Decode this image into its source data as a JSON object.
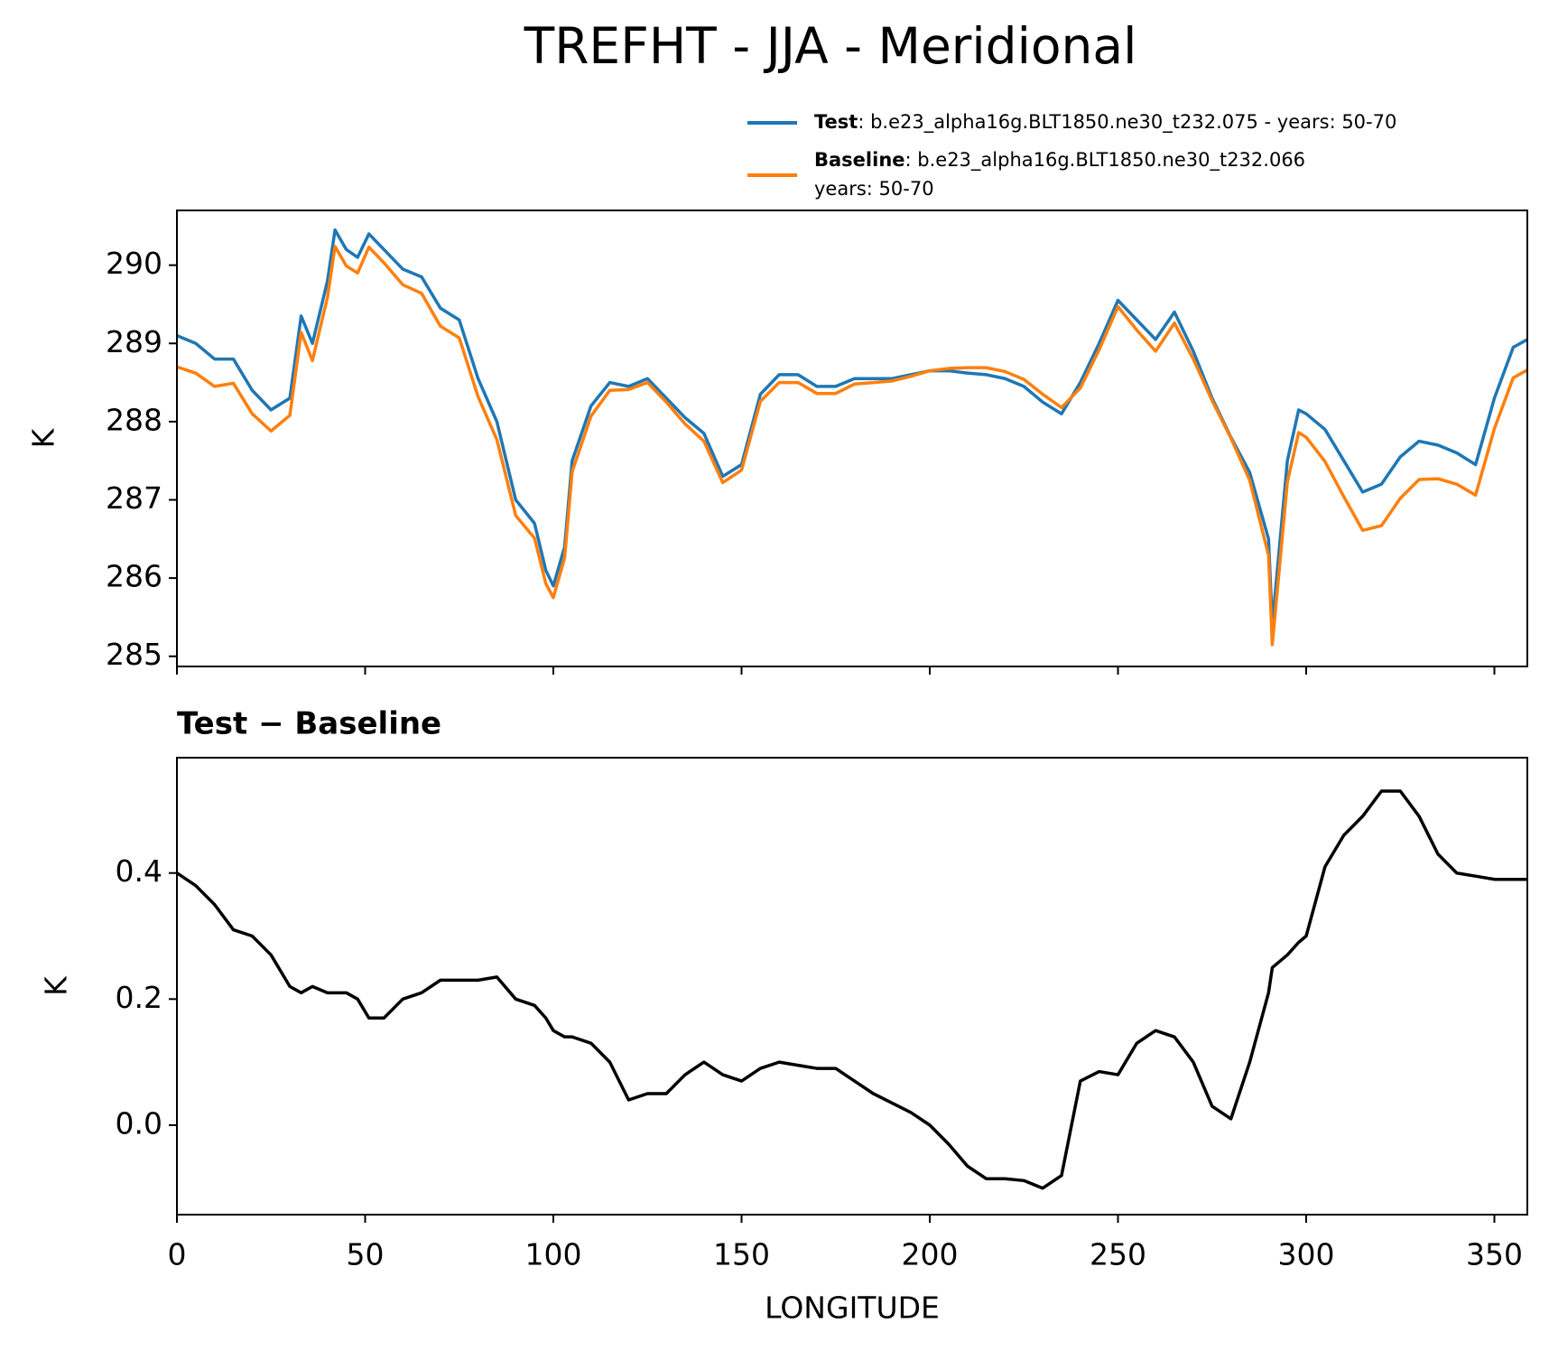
{
  "chart_data": [
    {
      "type": "line",
      "title": "TREFHT - JJA - Meridional",
      "ylabel": "K",
      "xlim": [
        0,
        358.75
      ],
      "ylim": [
        284.87,
        290.7
      ],
      "xticks": [
        0,
        50,
        100,
        150,
        200,
        250,
        300,
        350
      ],
      "show_xtick_labels": false,
      "yticks": [
        285,
        286,
        287,
        288,
        289,
        290
      ],
      "legend": "upper right outside",
      "x": [
        0,
        5,
        10,
        15,
        20,
        25,
        30,
        33,
        36,
        40,
        42,
        45,
        48,
        51,
        55,
        60,
        65,
        70,
        75,
        80,
        85,
        90,
        95,
        98,
        100,
        103,
        105,
        110,
        115,
        120,
        125,
        130,
        135,
        140,
        145,
        150,
        155,
        160,
        165,
        170,
        175,
        180,
        185,
        190,
        195,
        200,
        205,
        210,
        215,
        220,
        225,
        230,
        235,
        240,
        245,
        250,
        255,
        260,
        265,
        270,
        275,
        280,
        285,
        290,
        291,
        295,
        298,
        300,
        305,
        310,
        315,
        320,
        325,
        330,
        335,
        340,
        345,
        350,
        355,
        358.75
      ],
      "series": [
        {
          "name": "Test",
          "description": [
            ": b.e23_alpha16g.BLT1850.ne30_t232.075 - years: 50-70"
          ],
          "color": "#1f77b4",
          "values": [
            289.1,
            289.0,
            288.8,
            288.8,
            288.4,
            288.15,
            288.3,
            289.35,
            289.0,
            289.8,
            290.45,
            290.2,
            290.1,
            290.4,
            290.2,
            289.95,
            289.85,
            289.45,
            289.3,
            288.55,
            288.0,
            287.0,
            286.7,
            286.1,
            285.9,
            286.4,
            287.5,
            288.2,
            288.5,
            288.45,
            288.55,
            288.3,
            288.05,
            287.85,
            287.3,
            287.45,
            288.35,
            288.6,
            288.6,
            288.45,
            288.45,
            288.55,
            288.55,
            288.55,
            288.6,
            288.65,
            288.65,
            288.62,
            288.6,
            288.55,
            288.45,
            288.25,
            288.1,
            288.5,
            289.0,
            289.55,
            289.3,
            289.05,
            289.4,
            288.9,
            288.3,
            287.8,
            287.35,
            286.5,
            285.4,
            287.5,
            288.15,
            288.1,
            287.9,
            287.5,
            287.1,
            287.2,
            287.55,
            287.75,
            287.7,
            287.6,
            287.45,
            288.3,
            288.95,
            289.05
          ]
        },
        {
          "name": "Baseline",
          "description": [
            ": b.e23_alpha16g.BLT1850.ne30_t232.066",
            "years: 50-70"
          ],
          "color": "#ff7f0e",
          "values": [
            288.7,
            288.62,
            288.45,
            288.49,
            288.1,
            287.88,
            288.08,
            289.14,
            288.78,
            289.59,
            290.24,
            289.99,
            289.9,
            290.23,
            290.03,
            289.75,
            289.64,
            289.22,
            289.07,
            288.32,
            287.77,
            286.8,
            286.51,
            285.93,
            285.75,
            286.26,
            287.36,
            288.07,
            288.4,
            288.41,
            288.5,
            288.25,
            287.97,
            287.75,
            287.22,
            287.38,
            288.26,
            288.5,
            288.5,
            288.36,
            288.36,
            288.48,
            288.5,
            288.52,
            288.58,
            288.65,
            288.68,
            288.69,
            288.69,
            288.64,
            288.54,
            288.35,
            288.18,
            288.43,
            288.92,
            289.47,
            289.17,
            288.9,
            289.26,
            288.8,
            288.27,
            287.79,
            287.25,
            286.29,
            285.15,
            287.23,
            287.86,
            287.8,
            287.49,
            287.04,
            286.61,
            286.67,
            287.02,
            287.26,
            287.27,
            287.2,
            287.06,
            287.91,
            288.56,
            288.66
          ]
        }
      ]
    },
    {
      "type": "line",
      "title": "Test − Baseline",
      "xlabel": "LONGITUDE",
      "ylabel": "K",
      "xlim": [
        0,
        358.75
      ],
      "ylim": [
        -0.142,
        0.583
      ],
      "xticks": [
        0,
        50,
        100,
        150,
        200,
        250,
        300,
        350
      ],
      "show_xtick_labels": true,
      "yticks": [
        {
          "value": 0,
          "label": "0.0"
        },
        0.2,
        0.4
      ],
      "color": "#000000",
      "x": [
        0,
        5,
        10,
        15,
        20,
        25,
        30,
        33,
        36,
        40,
        42,
        45,
        48,
        51,
        55,
        60,
        65,
        70,
        75,
        80,
        85,
        90,
        95,
        98,
        100,
        103,
        105,
        110,
        115,
        120,
        125,
        130,
        135,
        140,
        145,
        150,
        155,
        160,
        165,
        170,
        175,
        180,
        185,
        190,
        195,
        200,
        205,
        210,
        215,
        220,
        225,
        230,
        235,
        240,
        245,
        250,
        255,
        260,
        265,
        270,
        275,
        280,
        285,
        290,
        291,
        295,
        298,
        300,
        305,
        310,
        315,
        320,
        325,
        330,
        335,
        340,
        345,
        350,
        355,
        358.75
      ],
      "values": [
        0.4,
        0.38,
        0.35,
        0.31,
        0.3,
        0.27,
        0.22,
        0.21,
        0.22,
        0.21,
        0.21,
        0.21,
        0.2,
        0.17,
        0.17,
        0.2,
        0.21,
        0.23,
        0.23,
        0.23,
        0.235,
        0.2,
        0.19,
        0.17,
        0.15,
        0.14,
        0.14,
        0.13,
        0.1,
        0.04,
        0.05,
        0.05,
        0.08,
        0.1,
        0.08,
        0.07,
        0.09,
        0.1,
        0.095,
        0.09,
        0.09,
        0.07,
        0.05,
        0.035,
        0.02,
        0.0,
        -0.03,
        -0.065,
        -0.085,
        -0.085,
        -0.088,
        -0.1,
        -0.08,
        0.07,
        0.085,
        0.08,
        0.13,
        0.15,
        0.14,
        0.1,
        0.03,
        0.01,
        0.1,
        0.21,
        0.25,
        0.27,
        0.29,
        0.3,
        0.41,
        0.46,
        0.49,
        0.53,
        0.53,
        0.49,
        0.43,
        0.4,
        0.395,
        0.39,
        0.39,
        0.39
      ]
    }
  ]
}
